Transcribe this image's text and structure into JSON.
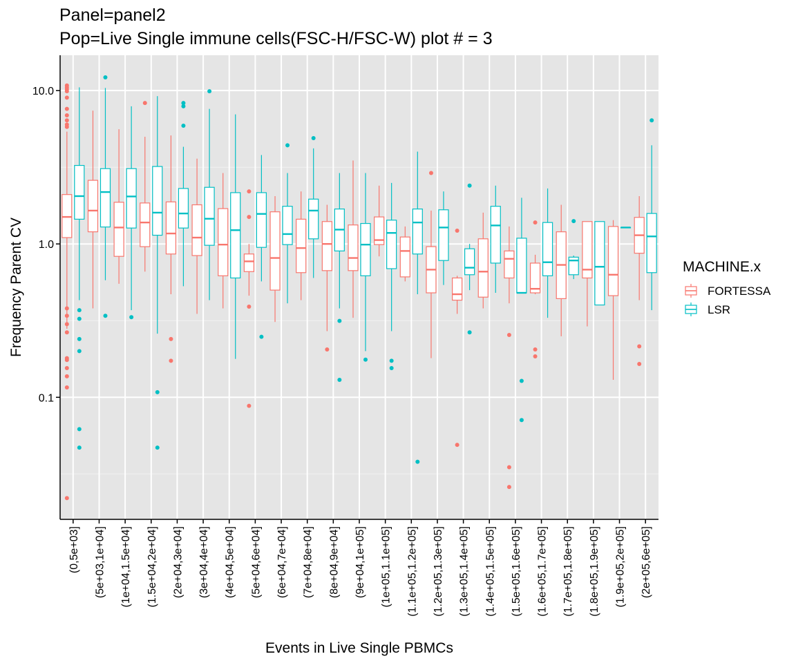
{
  "chart_data": {
    "type": "box",
    "title": "Panel=panel2",
    "subtitle": "Pop=Live Single immune cells(FSC-H/FSC-W) plot # = 3",
    "xlabel": "Events in Live Single PBMCs",
    "ylabel": "Frequency Parent CV",
    "y_scale": "log10",
    "ylim": [
      0.016,
      17
    ],
    "y_ticks": [
      {
        "value": 0.1,
        "label": "0.1"
      },
      {
        "value": 1,
        "label": "1.0"
      },
      {
        "value": 10,
        "label": "10.0"
      }
    ],
    "y_minor_gridlines": [
      0.03162,
      0.3162,
      3.162
    ],
    "grid": true,
    "legend": {
      "title": "MACHINE.x",
      "position": "right"
    },
    "categories": [
      "(0,5e+03]",
      "(5e+03,1e+04]",
      "(1e+04,1.5e+04]",
      "(1.5e+04,2e+04]",
      "(2e+04,3e+04]",
      "(3e+04,4e+04]",
      "(4e+04,5e+04]",
      "(5e+04,6e+04]",
      "(6e+04,7e+04]",
      "(7e+04,8e+04]",
      "(8e+04,9e+04]",
      "(9e+04,1e+05]",
      "(1e+05,1.1e+05]",
      "(1.1e+05,1.2e+05]",
      "(1.2e+05,1.3e+05]",
      "(1.3e+05,1.4e+05]",
      "(1.4e+05,1.5e+05]",
      "(1.5e+05,1.6e+05]",
      "(1.6e+05,1.7e+05]",
      "(1.7e+05,1.8e+05]",
      "(1.8e+05,1.9e+05]",
      "(1.9e+05,2e+05]",
      "(2e+05,6e+05]"
    ],
    "series": [
      {
        "name": "FORTESSA",
        "color": "#F8766D",
        "boxes": [
          {
            "whisker_low": 0.28,
            "q1": 1.1,
            "median": 1.5,
            "q3": 2.1,
            "whisker_high": 5.4,
            "outliers": [
              10.8,
              10.5,
              10.2,
              9.9,
              9.0,
              7.6,
              6.9,
              6.4,
              6.0,
              5.8,
              0.38,
              0.34,
              0.3,
              0.265,
              0.18,
              0.175,
              0.155,
              0.137,
              0.116,
              0.022
            ]
          },
          {
            "whisker_low": 0.38,
            "q1": 1.2,
            "median": 1.65,
            "q3": 2.6,
            "whisker_high": 7.4,
            "outliers": []
          },
          {
            "whisker_low": 0.55,
            "q1": 0.83,
            "median": 1.28,
            "q3": 1.87,
            "whisker_high": 5.6,
            "outliers": []
          },
          {
            "whisker_low": 0.66,
            "q1": 0.96,
            "median": 1.38,
            "q3": 1.85,
            "whisker_high": 5.0,
            "outliers": [
              8.3
            ]
          },
          {
            "whisker_low": 0.47,
            "q1": 0.86,
            "median": 1.17,
            "q3": 1.88,
            "whisker_high": 5.1,
            "outliers": [
              0.24,
              0.173
            ]
          },
          {
            "whisker_low": 0.35,
            "q1": 0.84,
            "median": 1.1,
            "q3": 1.8,
            "whisker_high": 3.6,
            "outliers": []
          },
          {
            "whisker_low": 0.38,
            "q1": 0.62,
            "median": 0.99,
            "q3": 1.7,
            "whisker_high": 2.9,
            "outliers": []
          },
          {
            "whisker_low": 0.46,
            "q1": 0.66,
            "median": 0.77,
            "q3": 0.86,
            "whisker_high": 1.0,
            "outliers": [
              2.2,
              1.5,
              0.39,
              0.088
            ]
          },
          {
            "whisker_low": 0.31,
            "q1": 0.5,
            "median": 0.81,
            "q3": 1.62,
            "whisker_high": 2.05,
            "outliers": []
          },
          {
            "whisker_low": 0.43,
            "q1": 0.65,
            "median": 0.94,
            "q3": 1.45,
            "whisker_high": 2.2,
            "outliers": []
          },
          {
            "whisker_low": 0.27,
            "q1": 0.67,
            "median": 1.0,
            "q3": 1.4,
            "whisker_high": 1.8,
            "outliers": [
              0.205
            ]
          },
          {
            "whisker_low": 0.33,
            "q1": 0.67,
            "median": 0.81,
            "q3": 1.33,
            "whisker_high": 3.5,
            "outliers": []
          },
          {
            "whisker_low": 0.83,
            "q1": 0.99,
            "median": 1.06,
            "q3": 1.5,
            "whisker_high": 2.4,
            "outliers": []
          },
          {
            "whisker_low": 0.57,
            "q1": 0.61,
            "median": 0.9,
            "q3": 1.11,
            "whisker_high": 1.3,
            "outliers": []
          },
          {
            "whisker_low": 0.18,
            "q1": 0.48,
            "median": 0.68,
            "q3": 0.96,
            "whisker_high": 1.65,
            "outliers": [
              2.9
            ]
          },
          {
            "whisker_low": 0.35,
            "q1": 0.43,
            "median": 0.47,
            "q3": 0.6,
            "whisker_high": 0.62,
            "outliers": [
              1.22,
              0.049
            ]
          },
          {
            "whisker_low": 0.38,
            "q1": 0.45,
            "median": 0.66,
            "q3": 1.08,
            "whisker_high": 1.6,
            "outliers": []
          },
          {
            "whisker_low": 0.41,
            "q1": 0.6,
            "median": 0.8,
            "q3": 0.9,
            "whisker_high": 1.3,
            "outliers": [
              0.255,
              0.035,
              0.026
            ]
          },
          {
            "whisker_low": 0.47,
            "q1": 0.48,
            "median": 0.51,
            "q3": 0.75,
            "whisker_high": 0.85,
            "outliers": [
              1.38,
              0.205,
              0.185
            ]
          },
          {
            "whisker_low": 0.25,
            "q1": 0.44,
            "median": 0.73,
            "q3": 1.2,
            "whisker_high": 1.8,
            "outliers": []
          },
          {
            "whisker_low": 0.29,
            "q1": 0.6,
            "median": 0.68,
            "q3": 1.4,
            "whisker_high": 1.4,
            "outliers": []
          },
          {
            "whisker_low": 0.13,
            "q1": 0.46,
            "median": 0.63,
            "q3": 1.3,
            "whisker_high": 1.43,
            "outliers": []
          },
          {
            "whisker_low": 0.43,
            "q1": 0.87,
            "median": 1.14,
            "q3": 1.49,
            "whisker_high": 2.05,
            "outliers": [
              0.215,
              0.165
            ]
          }
        ]
      },
      {
        "name": "LSR",
        "color": "#00BFC4",
        "boxes": [
          {
            "whisker_low": 0.43,
            "q1": 1.45,
            "median": 2.05,
            "q3": 3.25,
            "whisker_high": 10.5,
            "outliers": [
              0.37,
              0.325,
              0.24,
              0.2,
              0.062,
              0.047
            ]
          },
          {
            "whisker_low": 0.58,
            "q1": 1.29,
            "median": 2.18,
            "q3": 3.1,
            "whisker_high": 10.4,
            "outliers": [
              12.2,
              0.34
            ]
          },
          {
            "whisker_low": 0.37,
            "q1": 1.27,
            "median": 2.04,
            "q3": 3.1,
            "whisker_high": 7.9,
            "outliers": [
              0.333
            ]
          },
          {
            "whisker_low": 0.26,
            "q1": 1.14,
            "median": 1.6,
            "q3": 3.2,
            "whisker_high": 9.2,
            "outliers": [
              0.108,
              0.047
            ]
          },
          {
            "whisker_low": 0.53,
            "q1": 1.27,
            "median": 1.58,
            "q3": 2.3,
            "whisker_high": 4.3,
            "outliers": [
              8.3,
              7.9,
              5.9
            ]
          },
          {
            "whisker_low": 0.43,
            "q1": 0.98,
            "median": 1.46,
            "q3": 2.34,
            "whisker_high": 7.6,
            "outliers": [
              9.9
            ]
          },
          {
            "whisker_low": 0.178,
            "q1": 0.6,
            "median": 1.23,
            "q3": 2.16,
            "whisker_high": 7.0,
            "outliers": []
          },
          {
            "whisker_low": 0.57,
            "q1": 0.95,
            "median": 1.57,
            "q3": 2.16,
            "whisker_high": 3.8,
            "outliers": [
              0.248
            ]
          },
          {
            "whisker_low": 0.41,
            "q1": 0.99,
            "median": 1.16,
            "q3": 1.76,
            "whisker_high": 2.9,
            "outliers": [
              4.4
            ]
          },
          {
            "whisker_low": 0.6,
            "q1": 1.08,
            "median": 1.65,
            "q3": 1.96,
            "whisker_high": 4.2,
            "outliers": [
              4.9
            ]
          },
          {
            "whisker_low": 0.38,
            "q1": 0.9,
            "median": 1.24,
            "q3": 1.69,
            "whisker_high": 2.9,
            "outliers": [
              0.315,
              0.13
            ]
          },
          {
            "whisker_low": 0.2,
            "q1": 0.62,
            "median": 0.99,
            "q3": 1.36,
            "whisker_high": 2.9,
            "outliers": [
              0.176
            ]
          },
          {
            "whisker_low": 0.27,
            "q1": 0.69,
            "median": 1.18,
            "q3": 1.43,
            "whisker_high": 2.5,
            "outliers": [
              0.173,
              0.155
            ]
          },
          {
            "whisker_low": 0.47,
            "q1": 0.86,
            "median": 1.38,
            "q3": 1.69,
            "whisker_high": 4.0,
            "outliers": [
              0.038
            ]
          },
          {
            "whisker_low": 0.54,
            "q1": 0.78,
            "median": 1.28,
            "q3": 1.67,
            "whisker_high": 2.2,
            "outliers": []
          },
          {
            "whisker_low": 0.5,
            "q1": 0.63,
            "median": 0.7,
            "q3": 0.93,
            "whisker_high": 1.0,
            "outliers": [
              2.4,
              0.265
            ]
          },
          {
            "whisker_low": 0.48,
            "q1": 0.75,
            "median": 1.32,
            "q3": 1.76,
            "whisker_high": 2.4,
            "outliers": []
          },
          {
            "whisker_low": 0.48,
            "q1": 0.48,
            "median": 0.48,
            "q3": 1.09,
            "whisker_high": 2.0,
            "outliers": [
              0.128,
              0.071
            ]
          },
          {
            "whisker_low": 0.33,
            "q1": 0.62,
            "median": 0.76,
            "q3": 1.38,
            "whisker_high": 2.3,
            "outliers": []
          },
          {
            "whisker_low": 0.59,
            "q1": 0.63,
            "median": 0.78,
            "q3": 0.82,
            "whisker_high": 0.84,
            "outliers": [
              1.41
            ]
          },
          {
            "whisker_low": 0.4,
            "q1": 0.4,
            "median": 0.71,
            "q3": 1.4,
            "whisker_high": 1.4,
            "outliers": []
          },
          {
            "whisker_low": 1.28,
            "q1": 1.28,
            "median": 1.28,
            "q3": 1.28,
            "whisker_high": 1.28,
            "outliers": []
          },
          {
            "whisker_low": 0.37,
            "q1": 0.65,
            "median": 1.12,
            "q3": 1.58,
            "whisker_high": 4.4,
            "outliers": [
              6.4
            ]
          }
        ]
      }
    ]
  }
}
